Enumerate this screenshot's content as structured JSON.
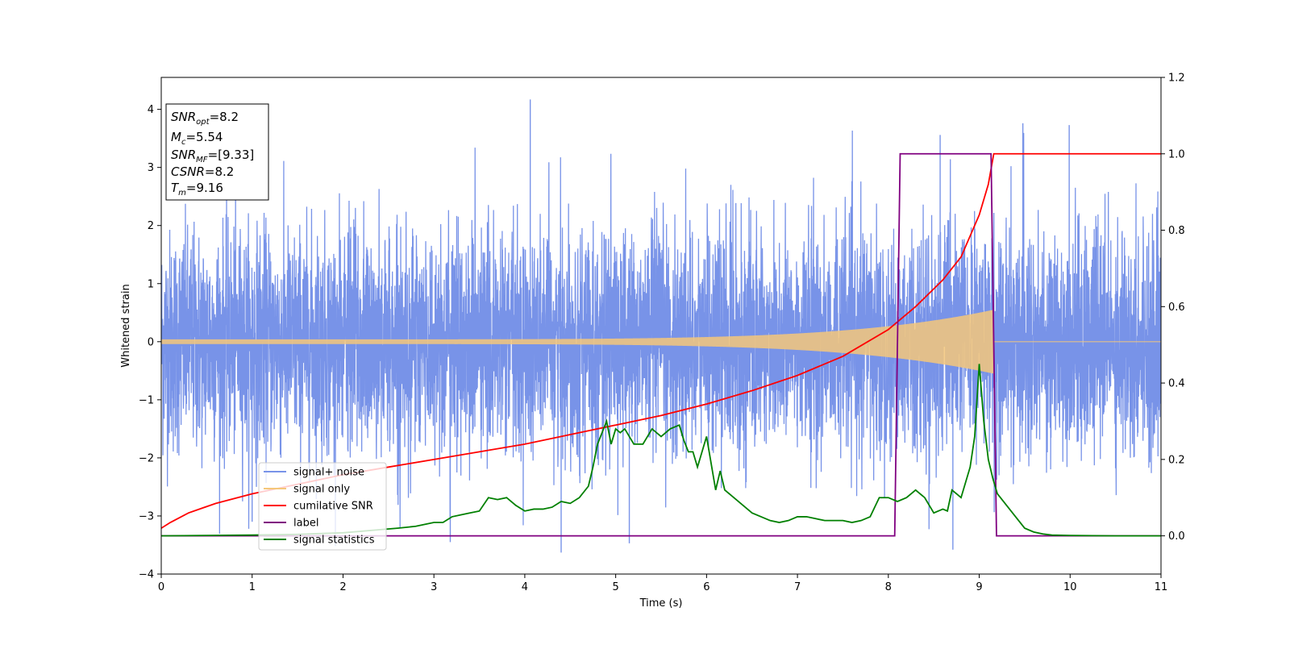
{
  "chart_data": {
    "type": "line",
    "title": "",
    "xlabel": "Time (s)",
    "ylabel": "Whitened strain",
    "y2label": "",
    "xlim": [
      0,
      11
    ],
    "ylim": [
      -4,
      4.55
    ],
    "y2lim": [
      -0.1,
      1.2
    ],
    "xticks": [
      0,
      1,
      2,
      3,
      4,
      5,
      6,
      7,
      8,
      9,
      10,
      11
    ],
    "xtick_labels": [
      "0",
      "1",
      "2",
      "3",
      "4",
      "5",
      "6",
      "7",
      "8",
      "9",
      "10",
      "11"
    ],
    "yticks": [
      -4,
      -3,
      -2,
      -1,
      0,
      1,
      2,
      3,
      4
    ],
    "ytick_labels": [
      "−4",
      "−3",
      "−2",
      "−1",
      "0",
      "1",
      "2",
      "3",
      "4"
    ],
    "y2ticks": [
      0.0,
      0.2,
      0.4,
      0.6,
      0.8,
      1.0,
      1.2
    ],
    "y2tick_labels": [
      "0.0",
      "0.2",
      "0.4",
      "0.6",
      "0.8",
      "1.0",
      "1.2"
    ],
    "grid": false,
    "legend_position": "lower-left",
    "annotation": {
      "lines": [
        {
          "base": "SNR",
          "sub": "opt",
          "rest": "=8.2"
        },
        {
          "base": "M",
          "sub": "c",
          "rest": "=5.54"
        },
        {
          "base": "SNR",
          "sub": "MF",
          "rest": "=[9.33]"
        },
        {
          "base": "CSNR",
          "sub": "",
          "rest": "=8.2"
        },
        {
          "base": "T",
          "sub": "m",
          "rest": "=9.16"
        }
      ]
    },
    "series": [
      {
        "name": "signal+ noise",
        "axis": "left",
        "color": "#7893e8",
        "kind": "noise",
        "description_envelope": {
          "t_end": 11,
          "sigma": 1.0,
          "max_peak": 4.17,
          "min_peak": -3.63
        }
      },
      {
        "name": "signal only",
        "axis": "left",
        "color": "#f5c77a",
        "kind": "chirp",
        "description_envelope": {
          "t_end": 9.16,
          "amp_start": 0.04,
          "amp_end": 0.55
        }
      },
      {
        "name": "cumilative SNR",
        "axis": "right",
        "color": "#ff0000",
        "x": [
          0,
          0.1,
          0.3,
          0.6,
          1,
          1.5,
          2,
          2.5,
          3,
          3.5,
          4,
          4.5,
          5,
          5.5,
          6,
          6.5,
          7,
          7.5,
          8,
          8.3,
          8.6,
          8.8,
          9.0,
          9.1,
          9.16,
          9.2,
          11
        ],
        "y": [
          0.02,
          0.035,
          0.06,
          0.085,
          0.11,
          0.135,
          0.16,
          0.18,
          0.2,
          0.22,
          0.24,
          0.265,
          0.29,
          0.315,
          0.345,
          0.38,
          0.42,
          0.47,
          0.54,
          0.6,
          0.67,
          0.73,
          0.84,
          0.92,
          1.0,
          1.0,
          1.0
        ]
      },
      {
        "name": "label",
        "axis": "right",
        "color": "#800080",
        "x": [
          0,
          8.07,
          8.13,
          9.13,
          9.19,
          11
        ],
        "y": [
          0,
          0,
          1,
          1,
          0,
          0
        ]
      },
      {
        "name": "signal statistics",
        "axis": "right",
        "color": "#008000",
        "x": [
          0,
          0.5,
          1,
          1.5,
          2,
          2.2,
          2.4,
          2.6,
          2.8,
          3.0,
          3.1,
          3.2,
          3.3,
          3.4,
          3.5,
          3.6,
          3.7,
          3.8,
          3.9,
          4.0,
          4.1,
          4.2,
          4.3,
          4.4,
          4.5,
          4.6,
          4.7,
          4.75,
          4.8,
          4.85,
          4.9,
          4.95,
          5.0,
          5.05,
          5.1,
          5.15,
          5.2,
          5.3,
          5.4,
          5.5,
          5.6,
          5.7,
          5.75,
          5.8,
          5.85,
          5.9,
          6.0,
          6.1,
          6.15,
          6.2,
          6.3,
          6.4,
          6.5,
          6.6,
          6.7,
          6.8,
          6.9,
          7.0,
          7.1,
          7.2,
          7.3,
          7.4,
          7.5,
          7.6,
          7.7,
          7.8,
          7.9,
          8.0,
          8.1,
          8.2,
          8.3,
          8.4,
          8.5,
          8.6,
          8.65,
          8.7,
          8.75,
          8.8,
          8.85,
          8.9,
          8.95,
          9.0,
          9.05,
          9.1,
          9.15,
          9.2,
          9.3,
          9.4,
          9.5,
          9.6,
          9.7,
          9.8,
          10,
          10.5,
          11
        ],
        "y": [
          0,
          0.001,
          0.002,
          0.004,
          0.008,
          0.012,
          0.016,
          0.02,
          0.025,
          0.035,
          0.035,
          0.05,
          0.055,
          0.06,
          0.065,
          0.1,
          0.095,
          0.1,
          0.08,
          0.065,
          0.07,
          0.07,
          0.075,
          0.09,
          0.085,
          0.1,
          0.13,
          0.18,
          0.24,
          0.27,
          0.3,
          0.24,
          0.28,
          0.27,
          0.28,
          0.26,
          0.24,
          0.24,
          0.28,
          0.26,
          0.28,
          0.29,
          0.25,
          0.22,
          0.22,
          0.18,
          0.26,
          0.12,
          0.17,
          0.12,
          0.1,
          0.08,
          0.06,
          0.05,
          0.04,
          0.035,
          0.04,
          0.05,
          0.05,
          0.045,
          0.04,
          0.04,
          0.04,
          0.035,
          0.04,
          0.05,
          0.1,
          0.1,
          0.09,
          0.1,
          0.12,
          0.1,
          0.06,
          0.07,
          0.065,
          0.12,
          0.11,
          0.1,
          0.14,
          0.18,
          0.26,
          0.45,
          0.3,
          0.2,
          0.15,
          0.11,
          0.08,
          0.05,
          0.02,
          0.01,
          0.005,
          0.002,
          0.001,
          0,
          0
        ]
      }
    ]
  }
}
